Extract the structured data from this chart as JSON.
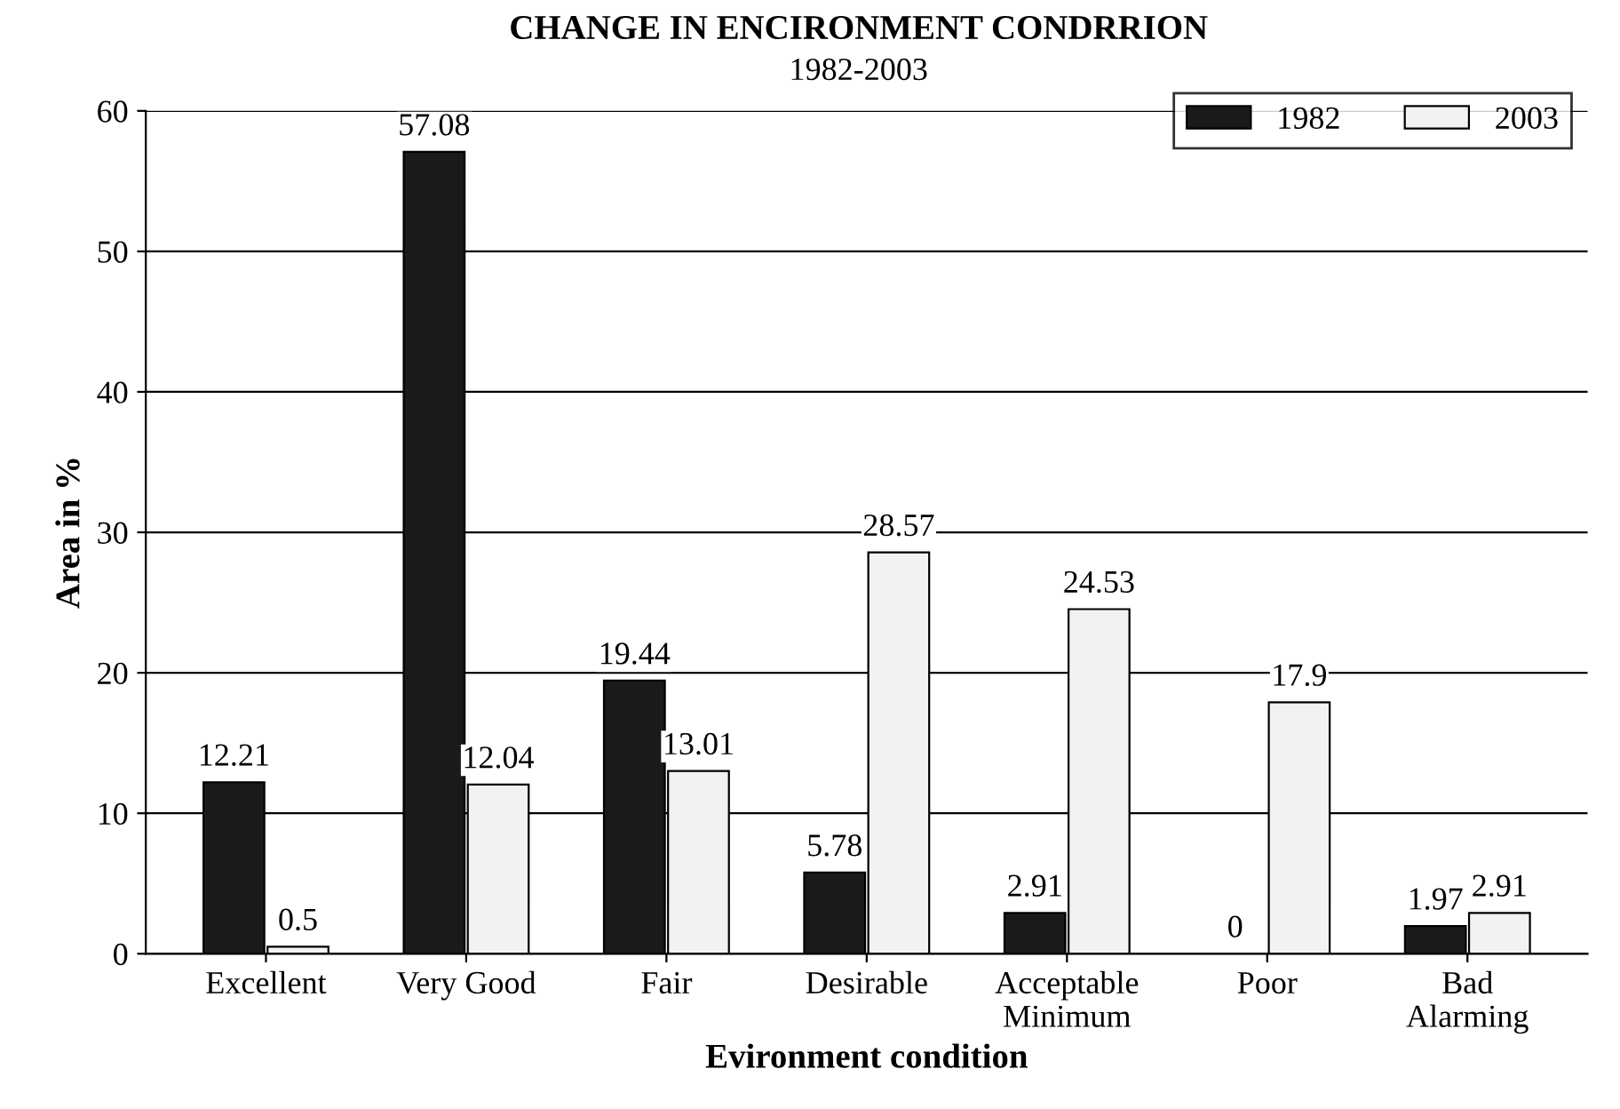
{
  "chart_data": {
    "type": "bar",
    "title": "CHANGE IN ENCIRONMENT CONDRRION",
    "subtitle": "1982-2003",
    "xlabel": "Evironment condition",
    "ylabel": "Area in %",
    "categories": [
      "Excellent",
      "Very Good",
      "Fair",
      "Desirable",
      "Acceptable\nMinimum",
      "Poor",
      "Bad\nAlarming"
    ],
    "series": [
      {
        "name": "1982",
        "color": "#1a1a1a",
        "values": [
          12.21,
          57.08,
          19.44,
          5.78,
          2.91,
          0,
          1.97
        ]
      },
      {
        "name": "2003",
        "color": "#f2f2f2",
        "values": [
          0.5,
          12.04,
          13.01,
          28.57,
          24.53,
          17.9,
          2.91
        ]
      }
    ],
    "ylim": [
      0,
      60
    ],
    "yticks": [
      0,
      10,
      20,
      30,
      40,
      50,
      60
    ],
    "grid": "y",
    "legend": "top right",
    "data_labels": true
  }
}
